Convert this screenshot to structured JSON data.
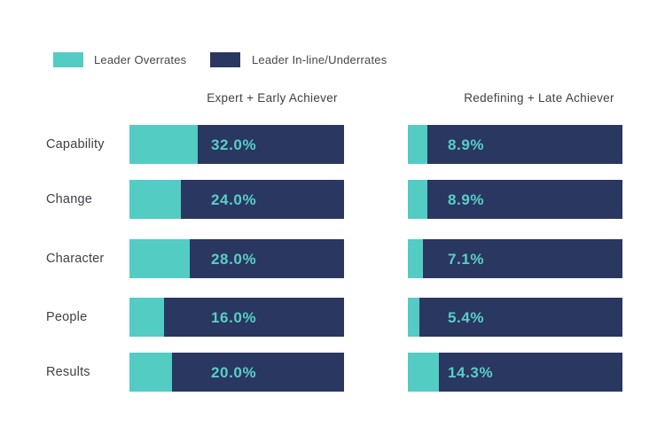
{
  "legend": {
    "items": [
      {
        "label": "Leader Overrates",
        "color": "#53ccc4"
      },
      {
        "label": "Leader In-line/Underrates",
        "color": "#2a3760"
      }
    ]
  },
  "colors": {
    "overrates_teal": "#53ccc4",
    "inline_underrates_navy": "#2a3760",
    "value_label_text": "#58cfc8",
    "axis_text": "#3f3f47",
    "background": "#ffffff"
  },
  "chart_data": {
    "type": "bar",
    "variant": "horizontal-stacked-100pct",
    "categories": [
      "Capability",
      "Change",
      "Character",
      "People",
      "Results"
    ],
    "series": [
      {
        "name": "Leader Overrates",
        "color": "#53ccc4"
      },
      {
        "name": "Leader In-line/Underrates",
        "color": "#2a3760"
      }
    ],
    "xlim": [
      0,
      100
    ],
    "grid": false,
    "legend_position": "top-left",
    "groups": [
      {
        "header": "Expert + Early Achiever",
        "overrate_pct": [
          32.0,
          24.0,
          28.0,
          16.0,
          20.0
        ],
        "inline_underrate_pct": [
          68.0,
          76.0,
          72.0,
          84.0,
          80.0
        ],
        "labels": [
          "32.0%",
          "24.0%",
          "28.0%",
          "16.0%",
          "20.0%"
        ]
      },
      {
        "header": "Redefining + Late Achiever",
        "overrate_pct": [
          8.9,
          8.9,
          7.1,
          5.4,
          14.3
        ],
        "inline_underrate_pct": [
          91.1,
          91.1,
          92.9,
          94.6,
          85.7
        ],
        "labels": [
          "8.9%",
          "8.9%",
          "7.1%",
          "5.4%",
          "14.3%"
        ]
      }
    ]
  }
}
